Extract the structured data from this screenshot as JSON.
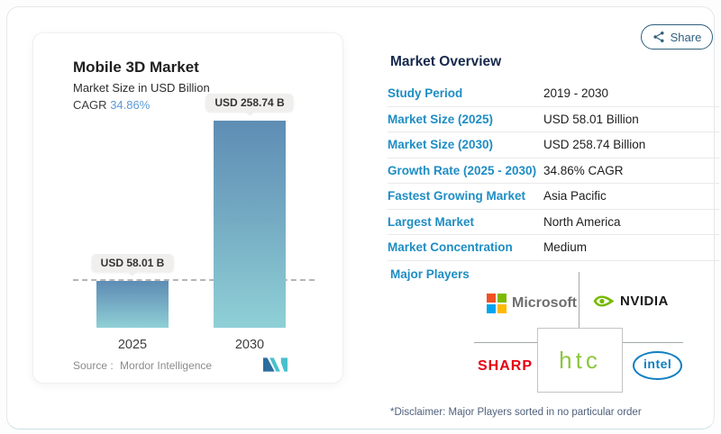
{
  "share": {
    "label": "Share"
  },
  "chart": {
    "title": "Mobile 3D Market",
    "subtitle": "Market Size in USD Billion",
    "cagr_label": "CAGR",
    "cagr_value": "34.86%",
    "source_label": "Source :",
    "source_value": "Mordor Intelligence"
  },
  "chart_data": {
    "type": "bar",
    "categories": [
      "2025",
      "2030"
    ],
    "values": [
      58.01,
      258.74
    ],
    "value_labels": [
      "USD 58.01 B",
      "USD 258.74 B"
    ],
    "title": "Mobile 3D Market",
    "ylabel": "Market Size in USD Billion",
    "ylim": [
      0,
      258.74
    ],
    "grid": false,
    "reference_line": {
      "y": 58.01,
      "style": "dashed"
    },
    "bar_gradient": [
      "#5e8db4",
      "#8fd0d6"
    ]
  },
  "overview": {
    "heading": "Market Overview",
    "rows": [
      {
        "label": "Study Period",
        "value": "2019 - 2030"
      },
      {
        "label": "Market Size (2025)",
        "value": "USD 58.01 Billion"
      },
      {
        "label": "Market Size (2030)",
        "value": "USD 258.74 Billion"
      },
      {
        "label": "Growth Rate (2025 - 2030)",
        "value": "34.86% CAGR"
      },
      {
        "label": "Fastest Growing Market",
        "value": "Asia Pacific"
      },
      {
        "label": "Largest Market",
        "value": "North America"
      },
      {
        "label": "Market Concentration",
        "value": "Medium"
      }
    ],
    "major_players_label": "Major Players",
    "players": [
      {
        "name": "Microsoft"
      },
      {
        "name": "NVIDIA"
      },
      {
        "name": "SHARP"
      },
      {
        "name": "htc"
      },
      {
        "name": "intel"
      }
    ],
    "disclaimer": "*Disclaimer: Major Players sorted in no particular order"
  },
  "colors": {
    "label_blue": "#1e8dc4",
    "heading_navy": "#16294d",
    "cagr_blue": "#5b9bd5",
    "share_teal": "#2e5f7d",
    "bar_top": "#5e8db4",
    "bar_bottom": "#8fd0d6",
    "sharp_red": "#e60012",
    "htc_green": "#8dc63f",
    "nvidia_green": "#76b900",
    "intel_blue": "#0f7ec2",
    "mordor_blue": "#2a6c9e",
    "mordor_teal": "#49c0cb"
  }
}
